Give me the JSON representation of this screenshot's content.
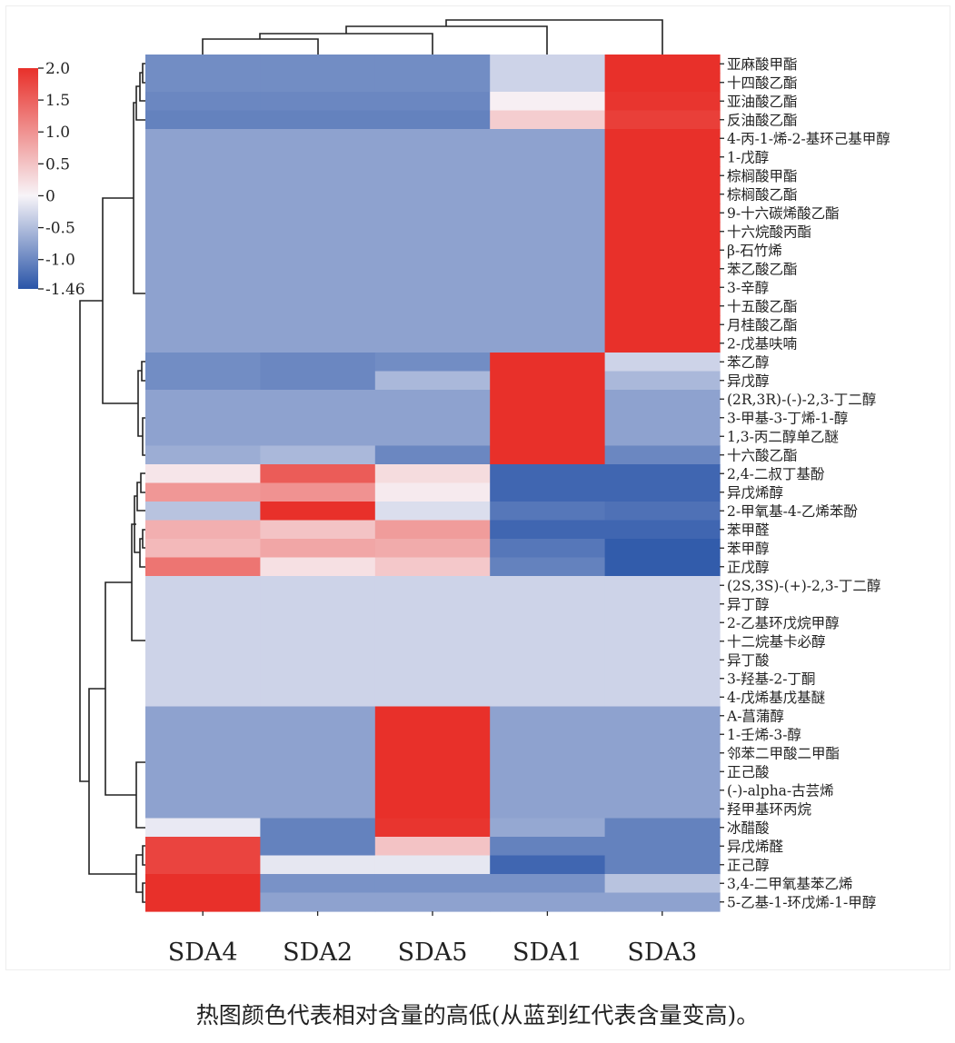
{
  "chart_data": {
    "type": "heatmap",
    "title": "",
    "columns": [
      "SDA4",
      "SDA2",
      "SDA5",
      "SDA1",
      "SDA3"
    ],
    "rows": [
      "亚麻酸甲酯",
      "十四酸乙酯",
      "亚油酸乙酯",
      "反油酸乙酯",
      "4-丙-1-烯-2-基环己基甲醇",
      "1-戊醇",
      "棕榈酸甲酯",
      "棕榈酸乙酯",
      "9-十六碳烯酸乙酯",
      "十六烷酸丙酯",
      "β-石竹烯",
      "苯乙酸乙酯",
      "3-辛醇",
      "十五酸乙酯",
      "月桂酸乙酯",
      "2-戊基呋喃",
      "苯乙醇",
      "异戊醇",
      "(2R,3R)-(-)-2,3-丁二醇",
      "3-甲基-3-丁烯-1-醇",
      "1,3-丙二醇单乙醚",
      "十六酸乙酯",
      "2,4-二叔丁基酚",
      "异戊烯醇",
      "2-甲氧基-4-乙烯苯酚",
      "苯甲醛",
      "苯甲醇",
      "正戊醇",
      "(2S,3S)-(+)-2,3-丁二醇",
      "异丁醇",
      "2-乙基环戊烷甲醇",
      "十二烷基卡必醇",
      "异丁酸",
      "3-羟基-2-丁酮",
      "4-戊烯基戊基醚",
      "A-菖蒲醇",
      "1-壬烯-3-醇",
      "邻苯二甲酸二甲酯",
      "正己酸",
      "(-)-alpha-古芸烯",
      "羟甲基环丙烷",
      "冰醋酸",
      "异戊烯醛",
      "正己醇",
      "3,4-二甲氧基苯乙烯",
      "5-乙基-1-环戊烯-1-甲醇"
    ],
    "values": [
      [
        -0.95,
        -0.95,
        -0.95,
        -0.3,
        2.0
      ],
      [
        -0.95,
        -0.95,
        -0.95,
        -0.3,
        2.0
      ],
      [
        -1.0,
        -1.0,
        -1.0,
        0.05,
        1.95
      ],
      [
        -1.05,
        -1.05,
        -1.05,
        0.4,
        1.85
      ],
      [
        -0.75,
        -0.75,
        -0.75,
        -0.75,
        2.0
      ],
      [
        -0.75,
        -0.75,
        -0.75,
        -0.75,
        2.0
      ],
      [
        -0.75,
        -0.75,
        -0.75,
        -0.75,
        2.0
      ],
      [
        -0.75,
        -0.75,
        -0.75,
        -0.75,
        2.0
      ],
      [
        -0.75,
        -0.75,
        -0.75,
        -0.75,
        2.0
      ],
      [
        -0.75,
        -0.75,
        -0.75,
        -0.75,
        2.0
      ],
      [
        -0.75,
        -0.75,
        -0.75,
        -0.75,
        2.0
      ],
      [
        -0.75,
        -0.75,
        -0.75,
        -0.75,
        2.0
      ],
      [
        -0.75,
        -0.75,
        -0.75,
        -0.75,
        2.0
      ],
      [
        -0.75,
        -0.75,
        -0.75,
        -0.75,
        2.0
      ],
      [
        -0.75,
        -0.75,
        -0.75,
        -0.75,
        2.0
      ],
      [
        -0.75,
        -0.75,
        -0.75,
        -0.75,
        2.0
      ],
      [
        -0.95,
        -1.0,
        -0.95,
        2.0,
        -0.3
      ],
      [
        -0.95,
        -1.0,
        -0.55,
        2.0,
        -0.55
      ],
      [
        -0.75,
        -0.75,
        -0.75,
        2.0,
        -0.75
      ],
      [
        -0.75,
        -0.75,
        -0.75,
        2.0,
        -0.75
      ],
      [
        -0.75,
        -0.75,
        -0.75,
        2.0,
        -0.75
      ],
      [
        -0.65,
        -0.55,
        -1.0,
        2.0,
        -1.0
      ],
      [
        0.15,
        1.55,
        0.25,
        -1.3,
        -1.3
      ],
      [
        0.95,
        1.0,
        0.1,
        -1.3,
        -1.3
      ],
      [
        -0.45,
        2.0,
        -0.2,
        -1.15,
        -1.2
      ],
      [
        0.7,
        0.5,
        0.9,
        -1.3,
        -1.3
      ],
      [
        0.6,
        0.8,
        0.75,
        -1.15,
        -1.4
      ],
      [
        1.3,
        0.2,
        0.45,
        -1.05,
        -1.4
      ],
      [
        -0.3,
        -0.3,
        -0.3,
        -0.3,
        -0.3
      ],
      [
        -0.3,
        -0.3,
        -0.3,
        -0.3,
        -0.3
      ],
      [
        -0.3,
        -0.3,
        -0.3,
        -0.3,
        -0.3
      ],
      [
        -0.3,
        -0.3,
        -0.3,
        -0.3,
        -0.3
      ],
      [
        -0.3,
        -0.3,
        -0.3,
        -0.3,
        -0.3
      ],
      [
        -0.3,
        -0.3,
        -0.3,
        -0.3,
        -0.3
      ],
      [
        -0.3,
        -0.3,
        -0.3,
        -0.3,
        -0.3
      ],
      [
        -0.75,
        -0.75,
        2.0,
        -0.75,
        -0.75
      ],
      [
        -0.75,
        -0.75,
        2.0,
        -0.75,
        -0.75
      ],
      [
        -0.75,
        -0.75,
        2.0,
        -0.75,
        -0.75
      ],
      [
        -0.75,
        -0.75,
        2.0,
        -0.75,
        -0.75
      ],
      [
        -0.75,
        -0.75,
        2.0,
        -0.75,
        -0.75
      ],
      [
        -0.75,
        -0.75,
        2.0,
        -0.75,
        -0.75
      ],
      [
        -0.1,
        -1.05,
        1.95,
        -0.7,
        -1.05
      ],
      [
        1.8,
        -1.05,
        0.5,
        -1.05,
        -1.05
      ],
      [
        1.8,
        -0.12,
        -0.12,
        -1.3,
        -1.05
      ],
      [
        2.0,
        -0.9,
        -0.9,
        -0.9,
        -0.45
      ],
      [
        2.0,
        -0.75,
        -0.75,
        -0.75,
        -0.75
      ]
    ],
    "colorbar": {
      "range": [
        -1.46,
        2.0
      ],
      "ticks": [
        2.0,
        1.5,
        1.0,
        0.5,
        0,
        -0.5,
        -1.0,
        -1.46
      ],
      "tick_labels": [
        "2.0",
        "1.5",
        "1.0",
        "0.5",
        "0",
        "-0.5",
        "-1.0",
        "-1.46"
      ],
      "low_color": "#2a55a8",
      "mid_color": "#f7f4f8",
      "high_color": "#e8302a"
    },
    "row_dendrogram": "left",
    "column_dendrogram": "top"
  },
  "caption": "热图颜色代表相对含量的高低(从蓝到红代表含量变高)。"
}
